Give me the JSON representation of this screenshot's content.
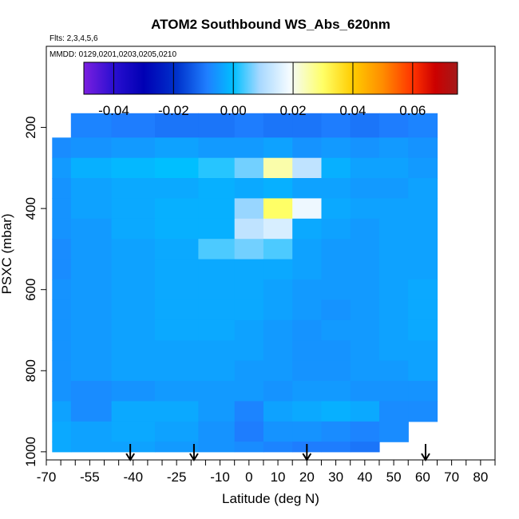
{
  "chart_data": {
    "type": "heatmap",
    "title": "ATOM2 Southbound WS_Abs_620nm",
    "flights_note": "Flts: 2,3,4,5,6",
    "dates_note": "MMDD: 0129,0201,0203,0205,0210",
    "xlabel": "Latitude (deg N)",
    "ylabel": "PSXC (mbar)",
    "xlim": [
      -70,
      85
    ],
    "ylim": [
      1020,
      0
    ],
    "xticks": [
      -70,
      -55,
      -40,
      -25,
      -10,
      0,
      10,
      20,
      30,
      40,
      50,
      60,
      70,
      80
    ],
    "yticks": [
      200,
      400,
      600,
      800,
      1000
    ],
    "colorbar": {
      "range": [
        -0.05,
        0.075
      ],
      "ticks": [
        "-0.04",
        "-0.02",
        "0.00",
        "0.02",
        "0.04",
        "0.06"
      ],
      "colors": [
        "#7b1fe0",
        "#2a0fd0",
        "#0000b4",
        "#0033cc",
        "#1f7fff",
        "#00bfff",
        "#a6d8ff",
        "#f4fbff",
        "#ffff66",
        "#ffcc00",
        "#ff8c00",
        "#ff3300",
        "#cc0000",
        "#a31a1a"
      ]
    },
    "arrows_lat": [
      -41,
      -19,
      20,
      61
    ],
    "columns_x": [
      -68,
      -55,
      -40,
      -25,
      -10,
      0,
      10,
      20,
      30,
      40,
      50,
      60,
      70
    ],
    "rows_p": [
      200,
      250,
      300,
      350,
      400,
      450,
      500,
      550,
      600,
      650,
      700,
      750,
      800,
      850,
      900,
      950,
      1000
    ],
    "values": [
      [
        null,
        -0.008,
        -0.009,
        -0.01,
        -0.01,
        -0.009,
        -0.01,
        -0.01,
        -0.009,
        -0.01,
        -0.009,
        -0.008,
        null
      ],
      [
        -0.007,
        -0.006,
        -0.005,
        -0.004,
        -0.005,
        -0.005,
        -0.004,
        -0.006,
        -0.005,
        -0.006,
        -0.005,
        -0.006,
        null
      ],
      [
        -0.005,
        -0.002,
        -0.001,
        0.0,
        0.002,
        0.006,
        0.025,
        0.012,
        -0.002,
        -0.004,
        -0.004,
        -0.005,
        null
      ],
      [
        -0.006,
        -0.004,
        -0.003,
        -0.003,
        -0.002,
        -0.003,
        -0.002,
        -0.004,
        -0.004,
        -0.005,
        -0.005,
        -0.004,
        null
      ],
      [
        -0.006,
        -0.004,
        -0.003,
        -0.002,
        -0.002,
        0.008,
        0.03,
        0.018,
        -0.003,
        -0.004,
        -0.004,
        -0.004,
        null
      ],
      [
        -0.006,
        -0.005,
        -0.003,
        -0.002,
        -0.002,
        0.012,
        0.015,
        -0.003,
        -0.004,
        -0.005,
        -0.004,
        -0.004,
        null
      ],
      [
        -0.007,
        -0.005,
        -0.004,
        -0.003,
        0.004,
        0.006,
        0.004,
        -0.004,
        -0.005,
        -0.005,
        -0.004,
        -0.004,
        null
      ],
      [
        -0.007,
        -0.005,
        -0.004,
        -0.003,
        -0.003,
        -0.003,
        -0.003,
        -0.004,
        -0.005,
        -0.005,
        -0.004,
        -0.004,
        null
      ],
      [
        -0.006,
        -0.005,
        -0.004,
        -0.003,
        -0.003,
        -0.003,
        -0.004,
        -0.005,
        -0.005,
        -0.005,
        -0.004,
        -0.003,
        null
      ],
      [
        -0.006,
        -0.005,
        -0.004,
        -0.003,
        -0.003,
        -0.003,
        -0.004,
        -0.005,
        -0.006,
        -0.005,
        -0.004,
        -0.003,
        null
      ],
      [
        -0.006,
        -0.005,
        -0.004,
        -0.003,
        -0.003,
        -0.004,
        -0.005,
        -0.006,
        -0.005,
        -0.005,
        -0.004,
        -0.003,
        null
      ],
      [
        -0.006,
        -0.005,
        -0.004,
        -0.004,
        -0.004,
        -0.004,
        -0.005,
        -0.006,
        -0.006,
        -0.005,
        -0.004,
        -0.004,
        null
      ],
      [
        -0.006,
        -0.005,
        -0.004,
        -0.004,
        -0.004,
        -0.005,
        -0.005,
        -0.006,
        -0.006,
        -0.005,
        -0.005,
        -0.004,
        null
      ],
      [
        -0.006,
        -0.007,
        -0.006,
        -0.005,
        -0.005,
        -0.005,
        -0.006,
        -0.005,
        -0.005,
        -0.006,
        -0.006,
        -0.006,
        null
      ],
      [
        -0.004,
        -0.007,
        -0.003,
        -0.003,
        -0.005,
        -0.008,
        -0.004,
        -0.003,
        -0.002,
        -0.003,
        -0.007,
        -0.007,
        null
      ],
      [
        -0.003,
        -0.004,
        -0.003,
        -0.004,
        -0.006,
        -0.009,
        -0.006,
        -0.006,
        -0.007,
        -0.008,
        -0.007,
        null,
        null
      ],
      [
        -0.003,
        -0.004,
        -0.004,
        -0.005,
        -0.006,
        -0.007,
        -0.008,
        -0.009,
        -0.009,
        -0.01,
        null,
        null,
        null
      ]
    ]
  }
}
